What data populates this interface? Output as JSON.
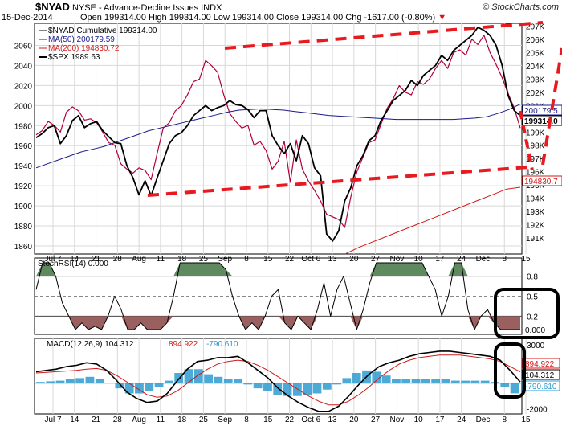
{
  "header": {
    "symbol": "$NYAD",
    "exchange": "NYSE - Advance-Decline Issues INDX",
    "date": "15-Dec-2014",
    "ohlc": "Open 199314.00  High 199314.00  Low 199314.00  Close 199314.00  Chg -1617.00 (-0.80%)",
    "chg_marker": "▼",
    "credit": "© StockCharts.com"
  },
  "colors": {
    "nyad": "#000000",
    "ma50": "#1a1a8c",
    "ma200": "#d21a1a",
    "spx": "#000000",
    "stoch_pos": "#5f8a5f",
    "stoch_neg": "#9a6060",
    "macd_hist": "#2e9bd0",
    "trendline": "#e8191f",
    "highlight_box": "#000000"
  },
  "chart_data": [
    {
      "type": "line",
      "title": "$NYAD Cumulative",
      "x_axis_labels": [
        "Jul 7",
        "14",
        "21",
        "28",
        "Aug",
        "11",
        "18",
        "25",
        "Sep",
        "8",
        "15",
        "22",
        "Oct 6",
        "13",
        "20",
        "27",
        "Nov",
        "10",
        "17",
        "24",
        "Dec",
        "8",
        "15"
      ],
      "left_axis": {
        "label": "$SPX",
        "range": [
          1852,
          2082
        ],
        "ticks": [
          1860,
          1880,
          1900,
          1920,
          1940,
          1960,
          1980,
          2000,
          2020,
          2040,
          2060
        ]
      },
      "right_axis": {
        "label": "$NYAD",
        "range": [
          189800,
          207200
        ],
        "ticks": [
          "191K",
          "192K",
          "193K",
          "194K",
          "195K",
          "196K",
          "197K",
          "198K",
          "199K",
          "200K",
          "201K",
          "202K",
          "203K",
          "204K",
          "205K",
          "206K",
          "207K"
        ]
      },
      "legend": [
        {
          "name": "$NYAD Cumulative 199314.00",
          "color": "#000000"
        },
        {
          "name": "MA(50) 200179.59",
          "color": "#1a1a8c"
        },
        {
          "name": "MA(200) 194830.72",
          "color": "#d21a1a"
        },
        {
          "name": "$SPX 1989.63",
          "color": "#000000"
        }
      ],
      "value_tags": {
        "ma50": "200179.5",
        "nyad": "199314.0",
        "ma200": "194830.7"
      },
      "series": [
        {
          "name": "$SPX",
          "axis": "left",
          "color": "#000000",
          "values": [
            1968,
            1972,
            1978,
            1980,
            1962,
            1970,
            1985,
            1990,
            1978,
            1982,
            1984,
            1975,
            1969,
            1963,
            1962,
            1940,
            1928,
            1911,
            1925,
            1910,
            1928,
            1945,
            1962,
            1970,
            1973,
            1980,
            1990,
            1995,
            2000,
            1995,
            1998,
            2000,
            2005,
            2001,
            2000,
            1996,
            1988,
            1995,
            1995,
            1970,
            1960,
            1952,
            1962,
            1945,
            1970,
            1962,
            1938,
            1930,
            1872,
            1865,
            1875,
            1905,
            1918,
            1940,
            1950,
            1965,
            1970,
            1985,
            1995,
            2005,
            2010,
            2015,
            2025,
            2020,
            2030,
            2035,
            2040,
            2050,
            2045,
            2055,
            2060,
            2065,
            2070,
            2078,
            2075,
            2070,
            2060,
            2040,
            2010,
            1995,
            1990
          ]
        },
        {
          "name": "$NYAD Cumulative",
          "axis": "right",
          "color": "#000000",
          "values": [
            198800,
            199100,
            199800,
            199500,
            199000,
            200500,
            200900,
            200600,
            199900,
            200000,
            199700,
            199000,
            198200,
            198000,
            196600,
            196200,
            195900,
            196300,
            196100,
            195400,
            197400,
            199300,
            199700,
            200600,
            201000,
            201800,
            202800,
            203000,
            204400,
            204000,
            203500,
            201800,
            200400,
            199800,
            199300,
            199500,
            198000,
            198300,
            197600,
            196200,
            196800,
            198300,
            195200,
            198400,
            196200,
            195300,
            194600,
            193800,
            192800,
            192600,
            192400,
            191800,
            194100,
            196000,
            197100,
            198200,
            198400,
            199600,
            200800,
            201500,
            202500,
            202000,
            201800,
            202800,
            202600,
            203000,
            203800,
            204400,
            203800,
            205000,
            205200,
            204800,
            206000,
            205600,
            206300,
            205000,
            204100,
            203100,
            201900,
            200800,
            199300
          ]
        },
        {
          "name": "MA(50)",
          "axis": "right",
          "color": "#1a1a8c",
          "values": [
            196300,
            196600,
            196900,
            197200,
            197500,
            197700,
            197900,
            198200,
            198500,
            198800,
            199100,
            199300,
            199500,
            199700,
            199900,
            200100,
            200300,
            200500,
            200650,
            200700,
            200750,
            200700,
            200650,
            200550,
            200450,
            200350,
            200250,
            200200,
            200150,
            200100,
            200050,
            200000,
            199950,
            199950,
            199950,
            199950,
            199950,
            199950,
            200000,
            200050,
            200150,
            200400,
            200700,
            201100
          ]
        },
        {
          "name": "MA(200)",
          "axis": "right",
          "color": "#d21a1a",
          "values": [
            189800,
            190300,
            190700,
            191100,
            191500,
            191900,
            192300,
            192700,
            193100,
            193500,
            193900,
            194300,
            194700,
            194830
          ]
        }
      ],
      "annotations": [
        "upper trend channel line (dashed red)",
        "lower trend channel line (dashed red)",
        "steep dashed breakdown line at right edge"
      ]
    },
    {
      "type": "area",
      "title": "StochRSI(14) 0.000",
      "y_ticks": [
        "0.8",
        "0.5",
        "0.2",
        "0.000"
      ],
      "range": [
        0,
        1
      ],
      "values": [
        0.6,
        1,
        1,
        0.8,
        0.4,
        0.2,
        0,
        0.1,
        0,
        0.05,
        0,
        0.2,
        0.5,
        0.3,
        0,
        0,
        0.1,
        0,
        0,
        0,
        0.1,
        0.5,
        1,
        1,
        1,
        1,
        1,
        1,
        1,
        0.9,
        0.5,
        0.2,
        0,
        0.1,
        0,
        0.2,
        0.5,
        0.6,
        0.1,
        0,
        0.2,
        0.1,
        0,
        0.3,
        0.7,
        0.2,
        0.6,
        0.8,
        0.4,
        0,
        0.3,
        0.7,
        1,
        1,
        1,
        1,
        1,
        1,
        1,
        1,
        0.8,
        0.6,
        0.2,
        0.5,
        1,
        1,
        0.3,
        0,
        0.2,
        0.3,
        0.1,
        0,
        0,
        0,
        0
      ]
    },
    {
      "type": "line",
      "title": "MACD(12,26,9)",
      "legend": [
        {
          "name": "MACD(12,26,9) 104.312",
          "color": "#000000"
        },
        {
          "name": "894.922",
          "color": "#d21a1a"
        },
        {
          "name": "-790.610",
          "color": "#2e9bd0"
        }
      ],
      "y_ticks": [
        "3000",
        "0",
        "-2000"
      ],
      "value_tags": [
        "894.922",
        "104.312",
        "-790.610"
      ],
      "range": [
        -2400,
        3500
      ],
      "series": [
        {
          "name": "MACD",
          "color": "#000000",
          "values": [
            900,
            1000,
            1100,
            1300,
            1400,
            1600,
            1500,
            1000,
            200,
            -700,
            -1200,
            -1500,
            -1400,
            -800,
            200,
            1100,
            1700,
            1800,
            2000,
            2000,
            2100,
            1600,
            1000,
            400,
            -400,
            -1000,
            -1500,
            -1900,
            -2200,
            -2200,
            -1800,
            -1000,
            -100,
            700,
            1300,
            1600,
            1800,
            2100,
            2300,
            2400,
            2500,
            2500,
            2400,
            2300,
            2200,
            2100,
            1800,
            1000,
            100
          ]
        },
        {
          "name": "Signal",
          "color": "#d21a1a",
          "values": [
            800,
            850,
            900,
            950,
            1000,
            1100,
            1150,
            1000,
            600,
            100,
            -400,
            -900,
            -1100,
            -1000,
            -600,
            0,
            600,
            1100,
            1500,
            1700,
            1800,
            1700,
            1400,
            1000,
            500,
            0,
            -500,
            -1000,
            -1400,
            -1700,
            -1700,
            -1400,
            -900,
            -300,
            400,
            1000,
            1500,
            1800,
            2000,
            2100,
            2200,
            2200,
            2200,
            2100,
            2000,
            1900,
            1700,
            1300,
            890
          ]
        },
        {
          "name": "Histogram",
          "color": "#2e9bd0",
          "values": [
            100,
            150,
            200,
            350,
            400,
            500,
            350,
            0,
            -400,
            -800,
            -800,
            -600,
            -300,
            200,
            800,
            1100,
            1100,
            700,
            500,
            300,
            300,
            -100,
            -400,
            -600,
            -900,
            -1000,
            -1000,
            -900,
            -800,
            -500,
            -100,
            400,
            800,
            1000,
            900,
            600,
            300,
            300,
            300,
            300,
            300,
            300,
            200,
            200,
            200,
            200,
            100,
            -300,
            -790
          ]
        }
      ]
    }
  ]
}
